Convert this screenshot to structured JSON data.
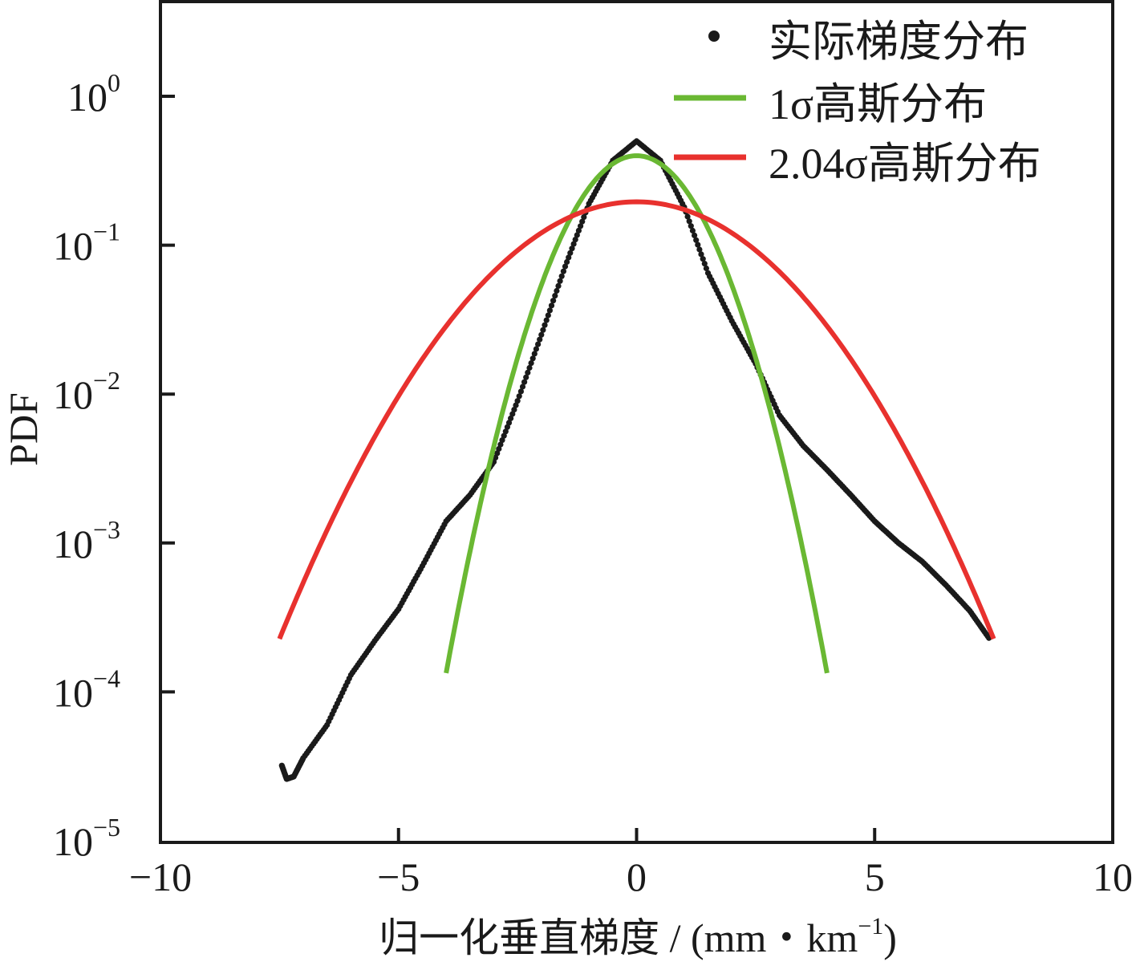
{
  "chart_data": {
    "type": "line",
    "title": "",
    "xlabel": "归一化垂直梯度 / (mm・km⁻¹)",
    "xlabel_main": "归一化垂直梯度 / (mm・km",
    "xlabel_sup": "−1",
    "xlabel_tail": ")",
    "ylabel": "PDF",
    "xlim": [
      -10,
      10
    ],
    "ylim": [
      1e-05,
      4.5
    ],
    "yscale": "log",
    "grid": false,
    "legend_position": "top-right",
    "x_ticks": [
      {
        "value": -10,
        "label": "−10"
      },
      {
        "value": -5,
        "label": "−5"
      },
      {
        "value": 0,
        "label": "0"
      },
      {
        "value": 5,
        "label": "5"
      },
      {
        "value": 10,
        "label": "10"
      }
    ],
    "y_ticks": [
      {
        "exp": 0,
        "base": "10",
        "sup": "0"
      },
      {
        "exp": -1,
        "base": "10",
        "sup": "−1"
      },
      {
        "exp": -2,
        "base": "10",
        "sup": "−2"
      },
      {
        "exp": -3,
        "base": "10",
        "sup": "−3"
      },
      {
        "exp": -4,
        "base": "10",
        "sup": "−4"
      },
      {
        "exp": -5,
        "base": "10",
        "sup": "−5"
      }
    ],
    "series": [
      {
        "name": "实际梯度分布",
        "kind": "scatter",
        "color": "#1a1a1a",
        "x": [
          -7.45,
          -7.35,
          -7.2,
          -7.0,
          -6.5,
          -6.0,
          -5.5,
          -5.0,
          -4.5,
          -4.0,
          -3.5,
          -3.0,
          -2.5,
          -2.0,
          -1.5,
          -1.0,
          -0.5,
          0.0,
          0.5,
          1.0,
          1.5,
          2.0,
          2.5,
          3.0,
          3.5,
          4.0,
          4.5,
          5.0,
          5.5,
          6.0,
          6.5,
          7.0,
          7.4
        ],
        "y": [
          3.2e-05,
          2.6e-05,
          2.7e-05,
          3.6e-05,
          6e-05,
          0.00013,
          0.00022,
          0.00036,
          0.0007,
          0.0014,
          0.0021,
          0.0035,
          0.009,
          0.025,
          0.072,
          0.19,
          0.37,
          0.5,
          0.37,
          0.18,
          0.065,
          0.031,
          0.016,
          0.0072,
          0.0045,
          0.0031,
          0.0021,
          0.0014,
          0.001,
          0.00075,
          0.00052,
          0.00035,
          0.00023
        ]
      },
      {
        "name": "1σ高斯分布",
        "kind": "gaussian",
        "color": "#6ab833",
        "sigma": 1,
        "mean": 0,
        "x_range": [
          -4,
          4
        ]
      },
      {
        "name": "2.04σ高斯分布",
        "kind": "gaussian",
        "color": "#e8312e",
        "sigma": 2.04,
        "mean": 0,
        "x_range": [
          -7.5,
          7.5
        ]
      }
    ]
  }
}
